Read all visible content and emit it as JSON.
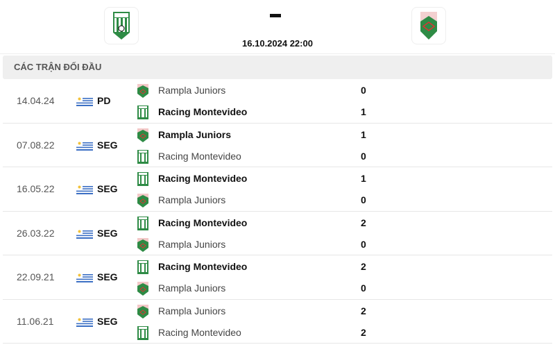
{
  "match": {
    "home_logo": "racing-montevideo-crest",
    "away_logo": "rampla-juniors-crest",
    "score_separator": "-",
    "datetime": "16.10.2024 22:00"
  },
  "section_title": "CÁC TRẬN ĐỐI ĐẦU",
  "colors": {
    "green": "#2e8b45",
    "section_bg": "#efefef"
  },
  "matches": [
    {
      "date": "14.04.24",
      "flag": "uruguay",
      "competition": "PD",
      "home": {
        "name": "Rampla Juniors",
        "score": "0",
        "win": false,
        "logo": "rampla"
      },
      "away": {
        "name": "Racing Montevideo",
        "score": "1",
        "win": true,
        "logo": "racing"
      }
    },
    {
      "date": "07.08.22",
      "flag": "uruguay",
      "competition": "SEG",
      "home": {
        "name": "Rampla Juniors",
        "score": "1",
        "win": true,
        "logo": "rampla"
      },
      "away": {
        "name": "Racing Montevideo",
        "score": "0",
        "win": false,
        "logo": "racing"
      }
    },
    {
      "date": "16.05.22",
      "flag": "uruguay",
      "competition": "SEG",
      "home": {
        "name": "Racing Montevideo",
        "score": "1",
        "win": true,
        "logo": "racing"
      },
      "away": {
        "name": "Rampla Juniors",
        "score": "0",
        "win": false,
        "logo": "rampla"
      }
    },
    {
      "date": "26.03.22",
      "flag": "uruguay",
      "competition": "SEG",
      "home": {
        "name": "Racing Montevideo",
        "score": "2",
        "win": true,
        "logo": "racing"
      },
      "away": {
        "name": "Rampla Juniors",
        "score": "0",
        "win": false,
        "logo": "rampla"
      }
    },
    {
      "date": "22.09.21",
      "flag": "uruguay",
      "competition": "SEG",
      "home": {
        "name": "Racing Montevideo",
        "score": "2",
        "win": true,
        "logo": "racing"
      },
      "away": {
        "name": "Rampla Juniors",
        "score": "0",
        "win": false,
        "logo": "rampla"
      }
    },
    {
      "date": "11.06.21",
      "flag": "uruguay",
      "competition": "SEG",
      "home": {
        "name": "Rampla Juniors",
        "score": "2",
        "win": false,
        "logo": "rampla"
      },
      "away": {
        "name": "Racing Montevideo",
        "score": "2",
        "win": false,
        "logo": "racing"
      }
    }
  ]
}
